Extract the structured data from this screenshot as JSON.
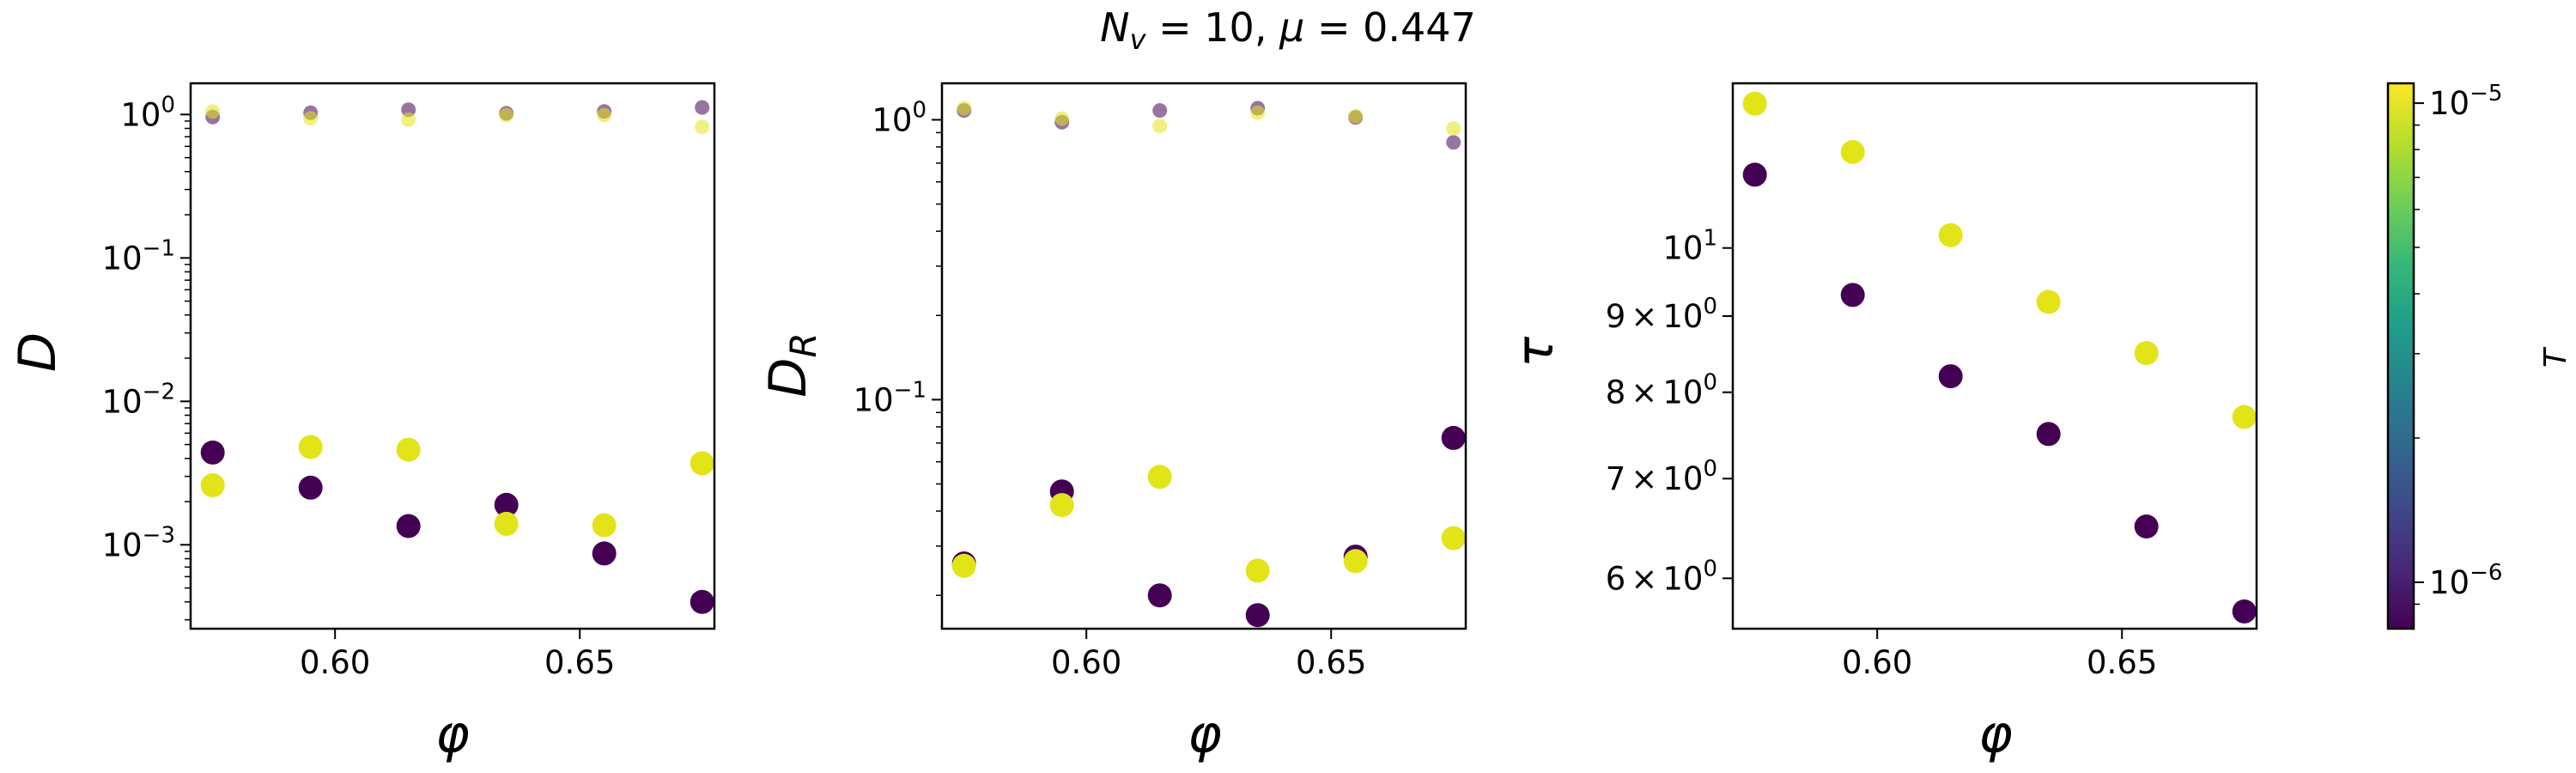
{
  "figure": {
    "suptitle": "N_v = 10, μ = 0.447",
    "suptitle_parts": {
      "sym": "N",
      "sub": "v",
      "rest1": " = 10, ",
      "mu": "μ",
      "rest2": " = 0.447"
    }
  },
  "colorbar": {
    "label": "T",
    "scale": "log",
    "range": [
      8e-07,
      1.1e-05
    ],
    "ticks": [
      {
        "value": 1e-05,
        "base": "10",
        "exp": "−5"
      },
      {
        "value": 1e-06,
        "base": "10",
        "exp": "−6"
      }
    ],
    "colormap": [
      "#440154",
      "#482878",
      "#3e4989",
      "#31688e",
      "#26828e",
      "#1f9e89",
      "#35b779",
      "#6ece58",
      "#b5de2b",
      "#fde725"
    ]
  },
  "series_colors": {
    "low_T": "#440154",
    "high_T": "#e3e418"
  },
  "chart_data": [
    {
      "type": "scatter",
      "id": "D",
      "title": "",
      "xlabel": "φ",
      "ylabel": "D",
      "xscale": "linear",
      "yscale": "log",
      "xlim": [
        0.5705,
        0.6775
      ],
      "ylim": [
        0.00026,
        1.65
      ],
      "xticks": [
        {
          "value": 0.6,
          "label": "0.60"
        },
        {
          "value": 0.65,
          "label": "0.65"
        }
      ],
      "yticks": [
        {
          "value": 1,
          "base": "10",
          "exp": "0"
        },
        {
          "value": 0.1,
          "base": "10",
          "exp": "−1"
        },
        {
          "value": 0.01,
          "base": "10",
          "exp": "−2"
        },
        {
          "value": 0.001,
          "base": "10",
          "exp": "−3"
        }
      ],
      "x": [
        0.575,
        0.595,
        0.615,
        0.635,
        0.655,
        0.675
      ],
      "series": [
        {
          "name": "T=1e-6 (small markers)",
          "color": "low_T",
          "size": "small",
          "values": [
            0.96,
            1.03,
            1.08,
            1.02,
            1.05,
            1.12
          ]
        },
        {
          "name": "T=1e-5 (small markers)",
          "color": "high_T",
          "size": "small",
          "values": [
            1.05,
            0.94,
            0.92,
            0.99,
            0.99,
            0.82
          ]
        },
        {
          "name": "T=1e-6",
          "color": "low_T",
          "size": "large",
          "values": [
            0.0044,
            0.0025,
            0.00135,
            0.0019,
            0.00087,
            0.0004
          ]
        },
        {
          "name": "T=1e-5",
          "color": "high_T",
          "size": "large",
          "values": [
            0.0026,
            0.0048,
            0.0046,
            0.0014,
            0.00137,
            0.0037
          ]
        }
      ]
    },
    {
      "type": "scatter",
      "id": "D_R",
      "title": "",
      "xlabel": "φ",
      "ylabel": "D_R",
      "ylabel_parts": {
        "base": "D",
        "sub": "R"
      },
      "xscale": "linear",
      "yscale": "log",
      "xlim": [
        0.5705,
        0.6775
      ],
      "ylim": [
        0.0152,
        1.35
      ],
      "xticks": [
        {
          "value": 0.6,
          "label": "0.60"
        },
        {
          "value": 0.65,
          "label": "0.65"
        }
      ],
      "yticks": [
        {
          "value": 1,
          "base": "10",
          "exp": "0"
        },
        {
          "value": 0.1,
          "base": "10",
          "exp": "−1"
        }
      ],
      "x": [
        0.575,
        0.595,
        0.615,
        0.635,
        0.655,
        0.675
      ],
      "series": [
        {
          "name": "T=1e-6 (small markers)",
          "color": "low_T",
          "size": "small",
          "values": [
            1.08,
            0.98,
            1.08,
            1.1,
            1.02,
            0.83
          ]
        },
        {
          "name": "T=1e-5 (small markers)",
          "color": "high_T",
          "size": "small",
          "values": [
            1.1,
            1.01,
            0.95,
            1.06,
            1.03,
            0.93
          ]
        },
        {
          "name": "T=1e-6",
          "color": "low_T",
          "size": "large",
          "values": [
            0.026,
            0.047,
            0.02,
            0.017,
            0.0275,
            0.073
          ]
        },
        {
          "name": "T=1e-5",
          "color": "high_T",
          "size": "large",
          "values": [
            0.0255,
            0.042,
            0.053,
            0.0245,
            0.0265,
            0.032
          ]
        }
      ]
    },
    {
      "type": "scatter",
      "id": "tau",
      "title": "",
      "xlabel": "φ",
      "ylabel": "τ",
      "xscale": "linear",
      "yscale": "log",
      "xlim": [
        0.5705,
        0.6775
      ],
      "ylim": [
        5.55,
        12.9
      ],
      "xticks": [
        {
          "value": 0.6,
          "label": "0.60"
        },
        {
          "value": 0.65,
          "label": "0.65"
        }
      ],
      "yticks": [
        {
          "value": 10,
          "base": "10",
          "exp": "1"
        },
        {
          "value": 9,
          "mant": "9",
          "base": "10",
          "exp": "0"
        },
        {
          "value": 8,
          "mant": "8",
          "base": "10",
          "exp": "0"
        },
        {
          "value": 7,
          "mant": "7",
          "base": "10",
          "exp": "0"
        },
        {
          "value": 6,
          "mant": "6",
          "base": "10",
          "exp": "0"
        }
      ],
      "x": [
        0.575,
        0.595,
        0.615,
        0.635,
        0.655,
        0.675
      ],
      "series": [
        {
          "name": "T=1e-6",
          "color": "low_T",
          "size": "large",
          "values": [
            11.2,
            9.3,
            8.2,
            7.5,
            6.5,
            5.7
          ]
        },
        {
          "name": "T=1e-5",
          "color": "high_T",
          "size": "large",
          "values": [
            12.5,
            11.6,
            10.2,
            9.2,
            8.5,
            7.7
          ]
        }
      ]
    }
  ]
}
